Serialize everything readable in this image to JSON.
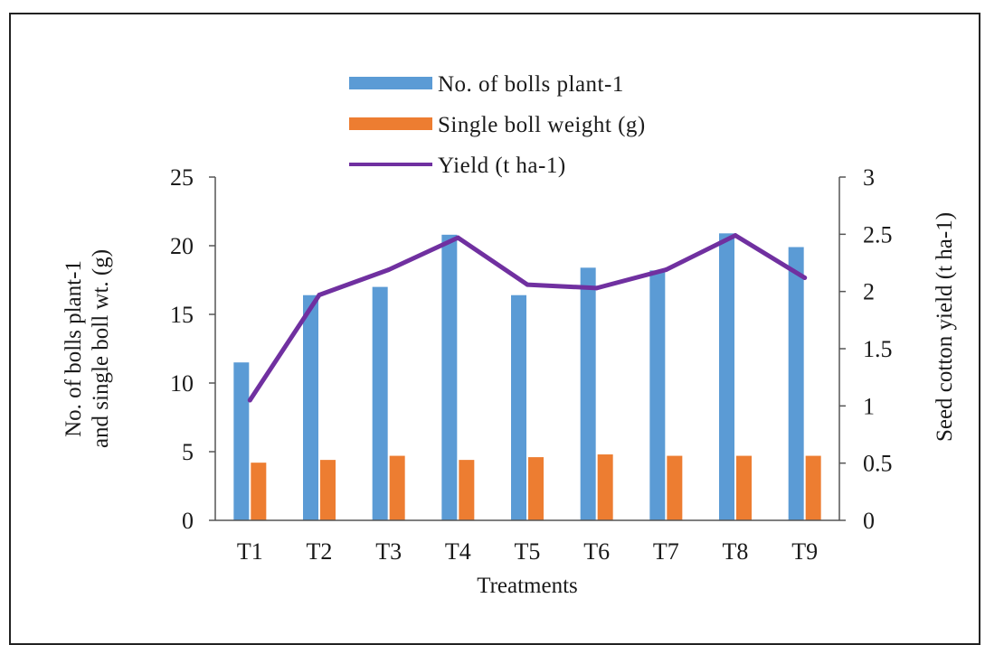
{
  "chart_data": {
    "type": "bar",
    "categories": [
      "T1",
      "T2",
      "T3",
      "T4",
      "T5",
      "T6",
      "T7",
      "T8",
      "T9"
    ],
    "series": [
      {
        "name": "No. of bolls plant-1",
        "kind": "bar",
        "axis": "left",
        "color": "#5b9bd5",
        "values": [
          11.5,
          16.4,
          17.0,
          20.8,
          16.4,
          18.4,
          18.2,
          20.9,
          19.9
        ]
      },
      {
        "name": "Single boll weight (g)",
        "kind": "bar",
        "axis": "left",
        "color": "#ed7d31",
        "values": [
          4.2,
          4.4,
          4.7,
          4.4,
          4.6,
          4.8,
          4.7,
          4.7,
          4.7
        ]
      },
      {
        "name": "Yield (t ha-1)",
        "kind": "line",
        "axis": "right",
        "color": "#7030a0",
        "values": [
          1.05,
          1.97,
          2.19,
          2.47,
          2.06,
          2.03,
          2.19,
          2.49,
          2.12
        ]
      }
    ],
    "xlabel": "Treatments",
    "ylabel_left_lines": [
      "No. of bolls plant-1",
      "and single boll wt. (g)"
    ],
    "ylabel_right": "Seed cotton yield (t ha-1)",
    "ylim_left": [
      0,
      25
    ],
    "yticks_left": [
      "0",
      "5",
      "10",
      "15",
      "20",
      "25"
    ],
    "ylim_right": [
      0,
      3
    ],
    "yticks_right": [
      "0",
      "0.5",
      "1",
      "1.5",
      "2",
      "2.5",
      "3"
    ],
    "grid": false,
    "legend_position": "top-center"
  }
}
